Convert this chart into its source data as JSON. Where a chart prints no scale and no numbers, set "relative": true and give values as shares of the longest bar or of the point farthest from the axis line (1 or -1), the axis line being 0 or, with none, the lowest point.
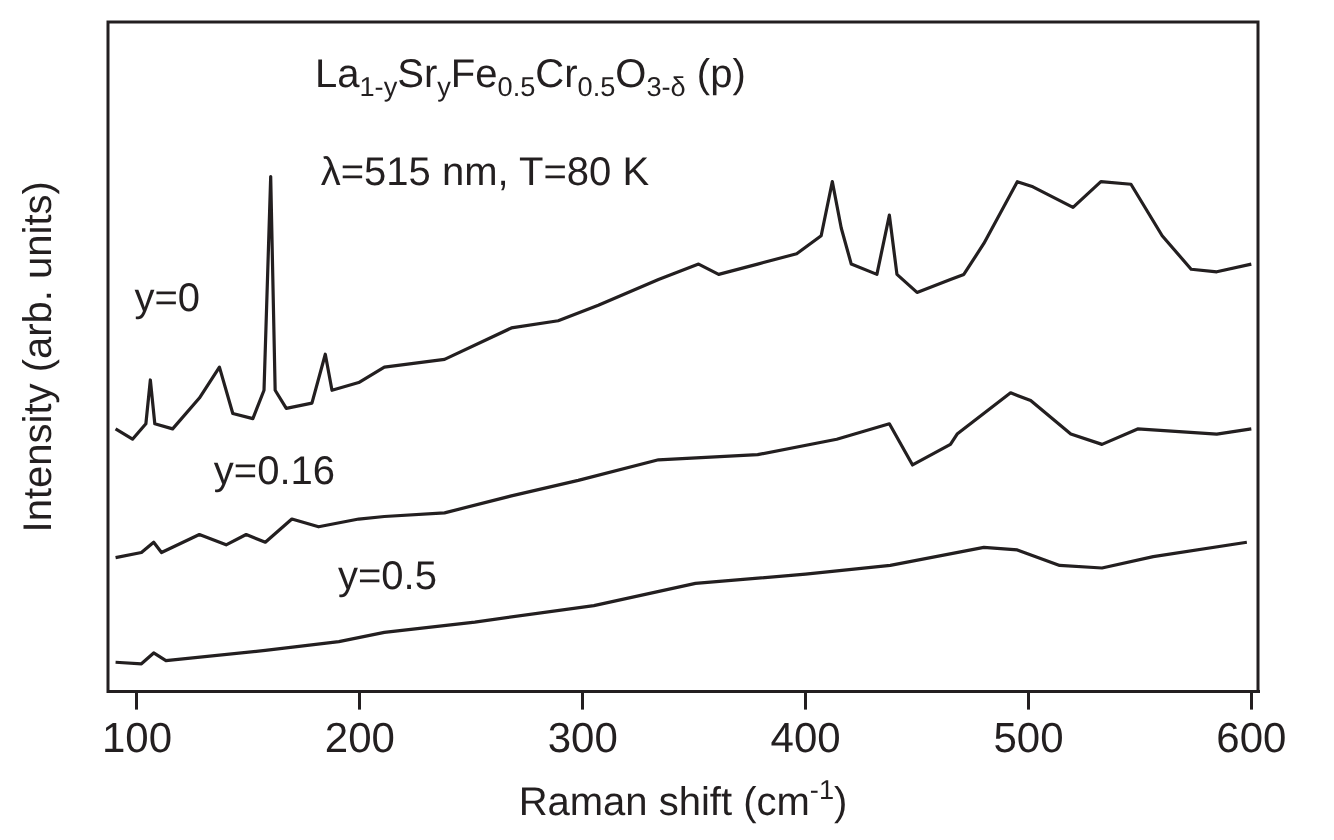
{
  "chart_data": {
    "type": "line",
    "relative": true,
    "title": "La$_{1-y}$Sr$_{y}$Fe$_{0.5}$Cr$_{0.5}$O$_{3-δ}$ (p)",
    "subtitle": "λ=515 nm, T=80 K",
    "xlabel": "Raman shift (cm$^{-1}$)",
    "ylabel": "Intensity (arb. units)",
    "xlim": [
      87,
      603
    ],
    "xticks": [
      100,
      200,
      300,
      400,
      500,
      600
    ],
    "grid": false,
    "legend": false,
    "marker": "none",
    "line_style": "solid",
    "series": [
      {
        "name": "y=0",
        "color": "#231f20",
        "x": [
          90.4,
          98,
          104,
          106,
          108,
          116,
          128,
          137,
          143,
          152,
          157,
          160,
          162,
          167,
          178.5,
          184.5,
          187.5,
          199.5,
          211,
          238,
          268,
          289,
          307,
          334,
          352,
          361,
          378.5,
          396,
          407,
          412,
          416,
          420.5,
          432,
          437.6,
          441,
          450,
          465,
          471,
          480,
          495,
          502,
          520,
          532.5,
          546,
          560,
          573,
          584.5,
          600
        ],
        "values": [
          0.51,
          0.49,
          0.52,
          0.605,
          0.52,
          0.51,
          0.57,
          0.63,
          0.54,
          0.53,
          0.585,
          1,
          0.585,
          0.55,
          0.56,
          0.655,
          0.585,
          0.6,
          0.63,
          0.645,
          0.706,
          0.72,
          0.75,
          0.8,
          0.83,
          0.81,
          0.83,
          0.85,
          0.885,
          0.99,
          0.9,
          0.83,
          0.81,
          0.925,
          0.81,
          0.775,
          0.8,
          0.81,
          0.87,
          0.99,
          0.98,
          0.94,
          0.99,
          0.985,
          0.885,
          0.82,
          0.815,
          0.83
        ]
      },
      {
        "name": "y=0.16",
        "color": "#231f20",
        "x": [
          90.4,
          102,
          107.5,
          111,
          128,
          140,
          149,
          157.6,
          169.5,
          181.5,
          199.5,
          211,
          238,
          268,
          298,
          334,
          378.5,
          414,
          437.6,
          448,
          465,
          468,
          492,
          501,
          519,
          533,
          549,
          584.5,
          600
        ],
        "values": [
          0.26,
          0.27,
          0.29,
          0.27,
          0.305,
          0.285,
          0.305,
          0.29,
          0.335,
          0.32,
          0.335,
          0.34,
          0.347,
          0.38,
          0.41,
          0.45,
          0.46,
          0.49,
          0.52,
          0.44,
          0.48,
          0.5,
          0.58,
          0.565,
          0.5,
          0.48,
          0.51,
          0.5,
          0.51
        ]
      },
      {
        "name": "y=0.5",
        "color": "#231f20",
        "x": [
          90.4,
          102,
          107.5,
          113,
          157.6,
          190.6,
          211,
          251.6,
          305,
          350.6,
          400,
          438,
          480,
          495,
          514,
          533,
          556,
          598
        ],
        "values": [
          0.057,
          0.054,
          0.075,
          0.06,
          0.08,
          0.097,
          0.115,
          0.135,
          0.167,
          0.21,
          0.228,
          0.245,
          0.28,
          0.275,
          0.245,
          0.24,
          0.262,
          0.29
        ]
      }
    ]
  }
}
